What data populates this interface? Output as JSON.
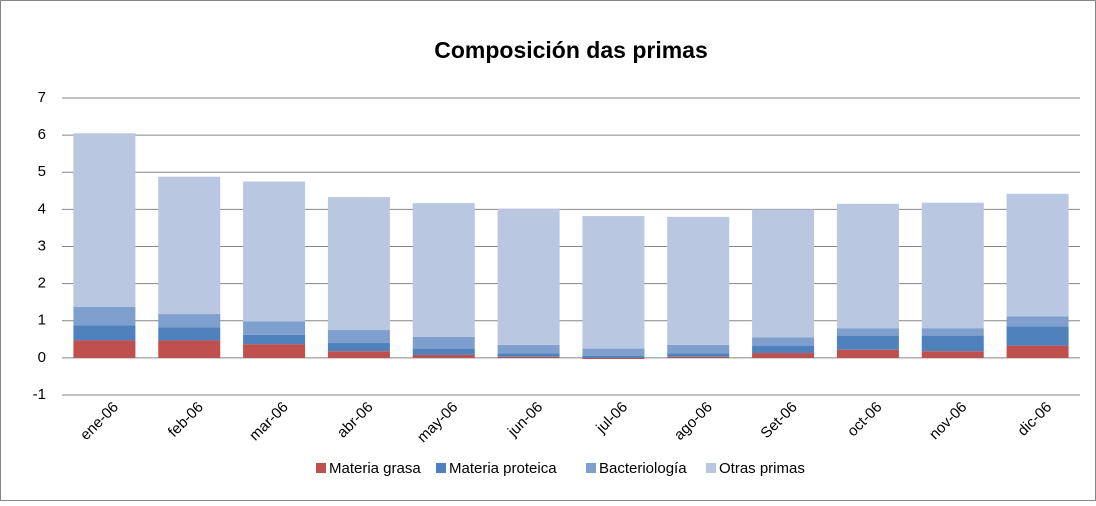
{
  "chart_data": {
    "type": "stacked_bar",
    "title": "Composición das primas",
    "categories": [
      "ene-06",
      "feb-06",
      "mar-06",
      "abr-06",
      "may-06",
      "jun-06",
      "jul-06",
      "ago-06",
      "Set-06",
      "oct-06",
      "nov-06",
      "dic-06"
    ],
    "series": [
      {
        "name": "Materia grasa",
        "color": "#c0504d",
        "values": [
          0.47,
          0.47,
          0.37,
          0.18,
          0.08,
          0.03,
          -0.03,
          0.03,
          0.13,
          0.22,
          0.18,
          0.33
        ]
      },
      {
        "name": "Materia proteica",
        "color": "#4f81bd",
        "values": [
          0.41,
          0.35,
          0.25,
          0.22,
          0.17,
          0.09,
          0.05,
          0.09,
          0.2,
          0.38,
          0.42,
          0.52
        ]
      },
      {
        "name": "Bacteriología",
        "color": "#7f9fcf",
        "values": [
          0.49,
          0.36,
          0.36,
          0.35,
          0.32,
          0.23,
          0.2,
          0.23,
          0.22,
          0.2,
          0.2,
          0.27
        ]
      },
      {
        "name": "Otras primas",
        "color": "#b9c7e0",
        "values": [
          4.68,
          3.7,
          3.77,
          3.58,
          3.6,
          3.67,
          3.57,
          3.45,
          3.45,
          3.35,
          3.38,
          3.3
        ]
      }
    ],
    "ylim": [
      -1,
      7
    ],
    "yticks": [
      -1,
      0,
      1,
      2,
      3,
      4,
      5,
      6,
      7
    ],
    "grid": true,
    "legend": "bottom"
  }
}
